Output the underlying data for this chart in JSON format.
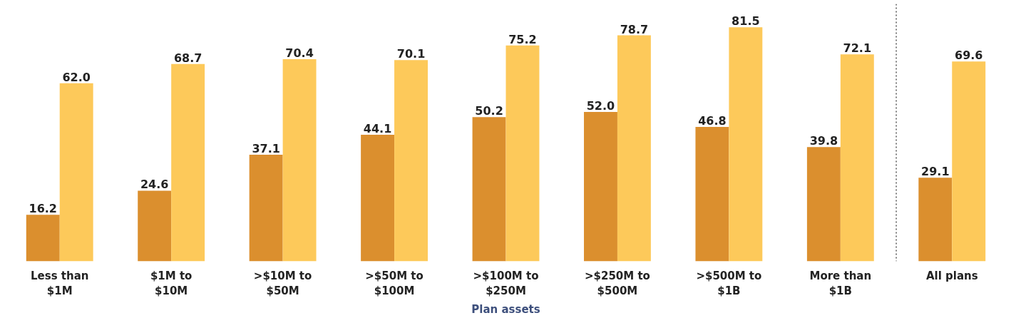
{
  "chart_data": {
    "type": "bar",
    "xlabel": "Plan assets",
    "categories": [
      "Less than\n$1M",
      "$1M to\n$10M",
      ">$10M to\n$50M",
      ">$50M to\n$100M",
      ">$100M to\n$250M",
      ">$250M to\n$500M",
      ">$500M to\n$1B",
      "More than\n$1B",
      "All plans"
    ],
    "series": [
      {
        "color": "#db8f2e",
        "values": [
          16.2,
          24.6,
          37.1,
          44.1,
          50.2,
          52.0,
          46.8,
          39.8,
          29.1
        ],
        "value_labels": [
          "16.2",
          "24.6",
          "37.1",
          "44.1",
          "50.2",
          "52.0",
          "46.8",
          "39.8",
          "29.1"
        ]
      },
      {
        "color": "#fdc95a",
        "values": [
          62.0,
          68.7,
          70.4,
          70.1,
          75.2,
          78.7,
          81.5,
          72.1,
          69.6
        ],
        "value_labels": [
          "62.0",
          "68.7",
          "70.4",
          "70.1",
          "75.2",
          "78.7",
          "81.5",
          "72.1",
          "69.6"
        ]
      }
    ],
    "grid": false
  }
}
